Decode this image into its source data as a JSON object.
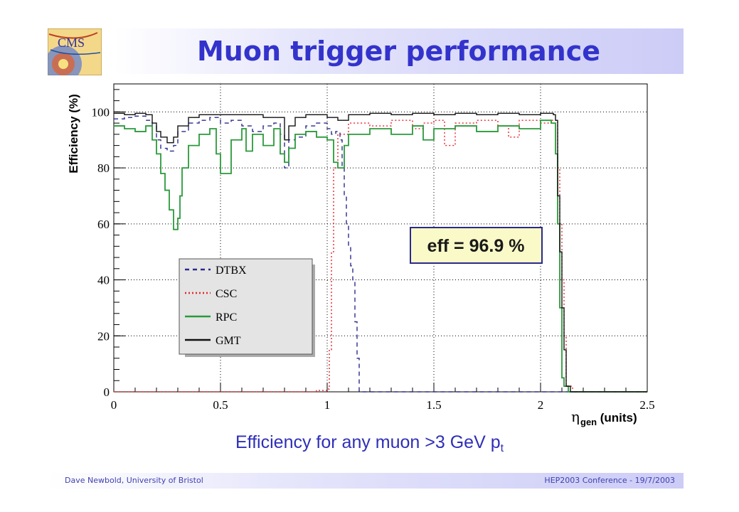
{
  "slide": {
    "title": "Muon trigger performance",
    "logo_text": "CMS",
    "caption_main": "Efficiency for any muon >3 GeV p",
    "caption_sub": "t",
    "footer_left": "Dave Newbold, University of Bristol",
    "footer_right": "HEP2003 Conference - 19/7/2003"
  },
  "chart_data": {
    "type": "line",
    "xlabel": "η",
    "xlabel_sub": "gen",
    "xlabel_units": " (units)",
    "ylabel": "Efficiency (%)",
    "xlim": [
      0,
      2.5
    ],
    "ylim": [
      0,
      110
    ],
    "x_ticks": [
      "0",
      "0.5",
      "1",
      "1.5",
      "2",
      "2.5"
    ],
    "y_ticks": [
      "0",
      "20",
      "40",
      "60",
      "80",
      "100"
    ],
    "grid": true,
    "legend_position": "center-left",
    "annotation": "eff = 96.9 %",
    "series": [
      {
        "name": "DTBX",
        "color": "#2a2a8c",
        "style": "dashed",
        "points": [
          [
            0,
            97.5
          ],
          [
            0.05,
            98
          ],
          [
            0.1,
            98.5
          ],
          [
            0.15,
            97
          ],
          [
            0.18,
            95
          ],
          [
            0.2,
            90
          ],
          [
            0.22,
            87
          ],
          [
            0.25,
            86
          ],
          [
            0.28,
            88
          ],
          [
            0.3,
            93
          ],
          [
            0.35,
            96
          ],
          [
            0.4,
            97
          ],
          [
            0.45,
            98
          ],
          [
            0.5,
            96
          ],
          [
            0.55,
            97
          ],
          [
            0.6,
            95
          ],
          [
            0.65,
            93
          ],
          [
            0.7,
            95
          ],
          [
            0.75,
            96
          ],
          [
            0.78,
            92
          ],
          [
            0.8,
            80
          ],
          [
            0.82,
            90
          ],
          [
            0.85,
            91
          ],
          [
            0.9,
            95
          ],
          [
            0.95,
            96
          ],
          [
            1.0,
            94
          ],
          [
            1.02,
            92
          ],
          [
            1.04,
            93
          ],
          [
            1.06,
            90
          ],
          [
            1.07,
            80
          ],
          [
            1.08,
            70
          ],
          [
            1.09,
            60
          ],
          [
            1.1,
            52
          ],
          [
            1.11,
            45
          ],
          [
            1.12,
            40
          ],
          [
            1.13,
            25
          ],
          [
            1.14,
            12
          ],
          [
            1.15,
            0
          ],
          [
            2.5,
            0
          ]
        ]
      },
      {
        "name": "CSC",
        "color": "#e8232a",
        "style": "dotted",
        "points": [
          [
            0,
            0
          ],
          [
            0.9,
            0
          ],
          [
            0.95,
            0.5
          ],
          [
            1.0,
            1
          ],
          [
            1.01,
            15
          ],
          [
            1.02,
            50
          ],
          [
            1.03,
            80
          ],
          [
            1.05,
            92
          ],
          [
            1.1,
            96
          ],
          [
            1.2,
            95
          ],
          [
            1.3,
            97
          ],
          [
            1.4,
            94
          ],
          [
            1.45,
            96
          ],
          [
            1.5,
            97
          ],
          [
            1.55,
            88
          ],
          [
            1.6,
            96
          ],
          [
            1.7,
            97
          ],
          [
            1.8,
            95
          ],
          [
            1.85,
            91
          ],
          [
            1.9,
            97
          ],
          [
            2.0,
            96
          ],
          [
            2.05,
            97
          ],
          [
            2.08,
            80
          ],
          [
            2.09,
            60
          ],
          [
            2.1,
            40
          ],
          [
            2.11,
            20
          ],
          [
            2.12,
            2
          ],
          [
            2.15,
            0
          ],
          [
            2.5,
            0
          ]
        ]
      },
      {
        "name": "RPC",
        "color": "#2a9a3a",
        "style": "solid",
        "points": [
          [
            0,
            95
          ],
          [
            0.05,
            94
          ],
          [
            0.1,
            93
          ],
          [
            0.15,
            95
          ],
          [
            0.18,
            90
          ],
          [
            0.2,
            85
          ],
          [
            0.22,
            78
          ],
          [
            0.24,
            72
          ],
          [
            0.26,
            65
          ],
          [
            0.28,
            58
          ],
          [
            0.3,
            62
          ],
          [
            0.31,
            70
          ],
          [
            0.32,
            80
          ],
          [
            0.35,
            88
          ],
          [
            0.4,
            92
          ],
          [
            0.45,
            94
          ],
          [
            0.48,
            85
          ],
          [
            0.5,
            78
          ],
          [
            0.55,
            90
          ],
          [
            0.6,
            94
          ],
          [
            0.62,
            86
          ],
          [
            0.65,
            92
          ],
          [
            0.7,
            88
          ],
          [
            0.75,
            94
          ],
          [
            0.78,
            85
          ],
          [
            0.8,
            82
          ],
          [
            0.82,
            87
          ],
          [
            0.85,
            92
          ],
          [
            0.9,
            93
          ],
          [
            0.95,
            91
          ],
          [
            1.0,
            90
          ],
          [
            1.03,
            82
          ],
          [
            1.05,
            80
          ],
          [
            1.08,
            88
          ],
          [
            1.1,
            92
          ],
          [
            1.2,
            94
          ],
          [
            1.3,
            92
          ],
          [
            1.4,
            95
          ],
          [
            1.45,
            90
          ],
          [
            1.5,
            94
          ],
          [
            1.6,
            95
          ],
          [
            1.7,
            93
          ],
          [
            1.8,
            95
          ],
          [
            1.9,
            94
          ],
          [
            2.0,
            97
          ],
          [
            2.05,
            96
          ],
          [
            2.07,
            85
          ],
          [
            2.08,
            60
          ],
          [
            2.09,
            30
          ],
          [
            2.1,
            5
          ],
          [
            2.11,
            2
          ],
          [
            2.13,
            0
          ],
          [
            2.5,
            0
          ]
        ]
      },
      {
        "name": "GMT",
        "color": "#111111",
        "style": "solid",
        "points": [
          [
            0,
            99.5
          ],
          [
            0.05,
            99
          ],
          [
            0.1,
            99.5
          ],
          [
            0.15,
            99
          ],
          [
            0.18,
            96
          ],
          [
            0.2,
            93
          ],
          [
            0.22,
            91
          ],
          [
            0.25,
            89
          ],
          [
            0.28,
            91
          ],
          [
            0.3,
            95
          ],
          [
            0.35,
            98
          ],
          [
            0.4,
            99
          ],
          [
            0.5,
            99
          ],
          [
            0.6,
            99
          ],
          [
            0.7,
            98
          ],
          [
            0.75,
            98
          ],
          [
            0.8,
            90
          ],
          [
            0.82,
            95
          ],
          [
            0.85,
            98
          ],
          [
            0.9,
            99
          ],
          [
            1.0,
            98
          ],
          [
            1.05,
            97
          ],
          [
            1.1,
            99
          ],
          [
            1.2,
            99.5
          ],
          [
            1.3,
            99
          ],
          [
            1.4,
            99.5
          ],
          [
            1.5,
            99
          ],
          [
            1.6,
            99.5
          ],
          [
            1.7,
            99
          ],
          [
            1.8,
            99.5
          ],
          [
            1.9,
            99
          ],
          [
            2.0,
            99.5
          ],
          [
            2.06,
            99
          ],
          [
            2.07,
            97
          ],
          [
            2.08,
            70
          ],
          [
            2.09,
            50
          ],
          [
            2.1,
            30
          ],
          [
            2.11,
            15
          ],
          [
            2.12,
            2
          ],
          [
            2.14,
            0
          ],
          [
            2.5,
            0
          ]
        ]
      }
    ]
  }
}
